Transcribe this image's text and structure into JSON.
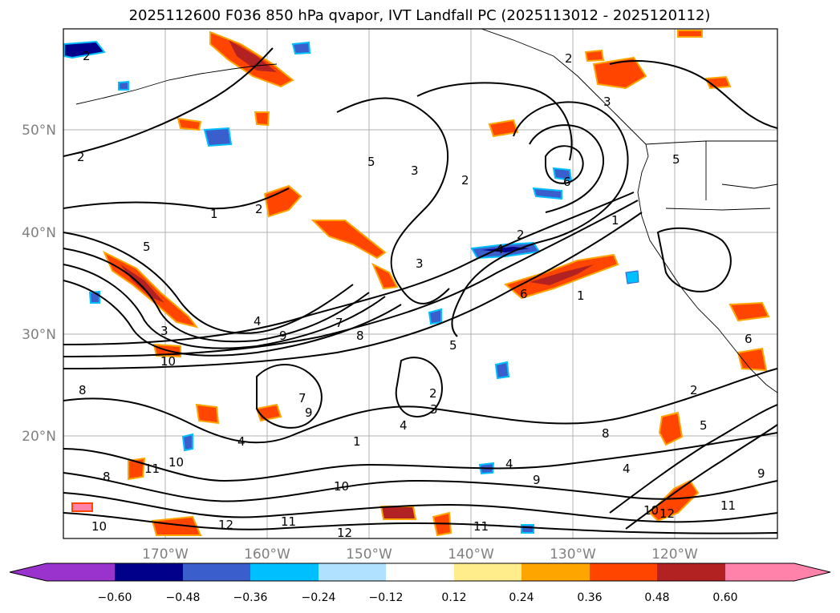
{
  "title": "2025112600 F036 850 hPa qvapor, IVT Landfall PC (2025113012 - 2025120112)",
  "lat_labels": [
    "50°N",
    "40°N",
    "30°N",
    "20°N"
  ],
  "lon_labels": [
    "170°W",
    "160°W",
    "150°W",
    "140°W",
    "130°W",
    "120°W"
  ],
  "colorbar": {
    "ticks": [
      "−0.60",
      "−0.48",
      "−0.36",
      "−0.24",
      "−0.12",
      "0.12",
      "0.24",
      "0.36",
      "0.48",
      "0.60"
    ],
    "colors": [
      "#9a32cd",
      "#00008b",
      "#3a5fcd",
      "#00bfff",
      "#b0e2ff",
      "#ffffff",
      "#ffec8b",
      "#ffa500",
      "#ff4500",
      "#b22222",
      "#ff82ab"
    ]
  },
  "contour_labels": [
    "2",
    "2",
    "1",
    "2",
    "5",
    "3",
    "2",
    "6",
    "2",
    "4",
    "3",
    "1",
    "1",
    "5",
    "3",
    "6",
    "9",
    "4",
    "7",
    "10",
    "8",
    "7",
    "5",
    "2",
    "9",
    "1",
    "3",
    "4",
    "4",
    "8",
    "10",
    "8",
    "10",
    "11",
    "12",
    "11",
    "12",
    "10",
    "11",
    "9",
    "4",
    "2",
    "5",
    "8",
    "4",
    "9",
    "10",
    "12",
    "11",
    "2",
    "3",
    "6",
    "5"
  ],
  "colorbar_mapping": {
    "min": -0.6,
    "max": 0.6,
    "interval": 0.12
  }
}
